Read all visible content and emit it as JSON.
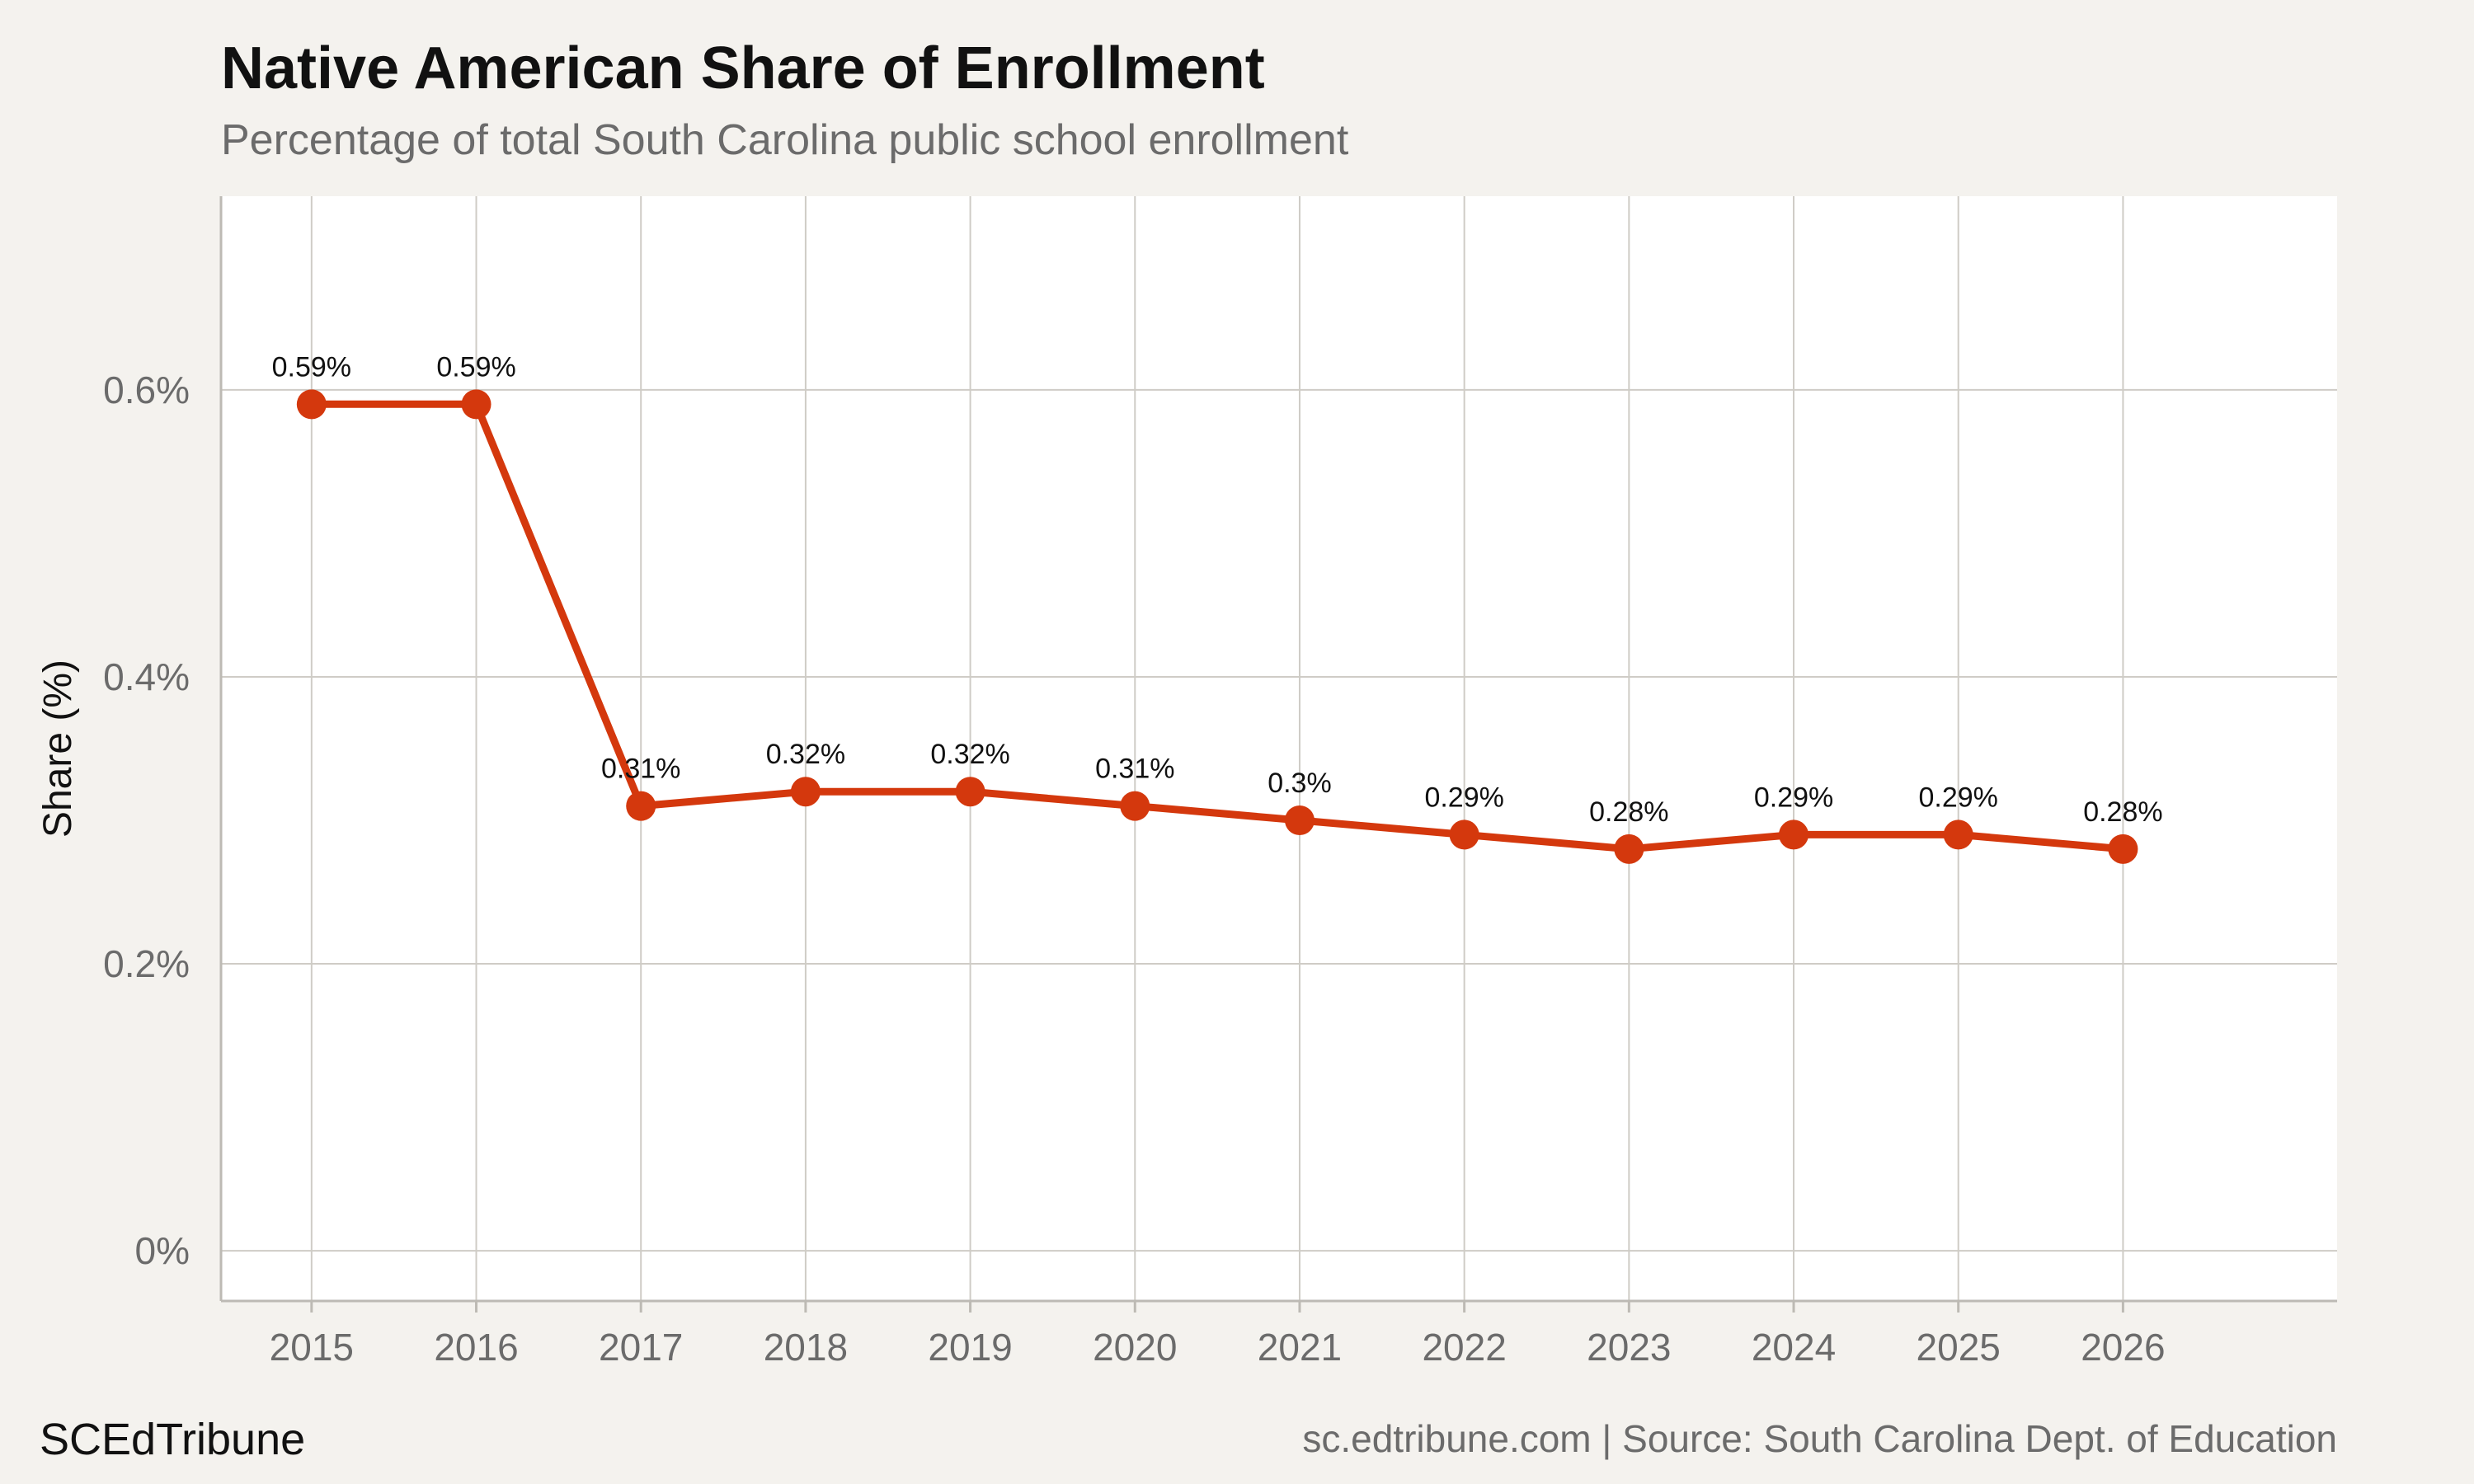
{
  "header": {
    "title": "Native American Share of Enrollment",
    "subtitle": "Percentage of total South Carolina public school enrollment"
  },
  "footer": {
    "brand": "SCEdTribune",
    "source": "sc.edtribune.com | Source: South Carolina Dept. of Education"
  },
  "colors": {
    "line": "#d4380d",
    "grid": "#cfccc6",
    "panel": "#ffffff",
    "background": "#f4f2ee"
  },
  "chart_data": {
    "type": "line",
    "title": "Native American Share of Enrollment",
    "subtitle": "Percentage of total South Carolina public school enrollment",
    "xlabel": "",
    "ylabel": "Share (%)",
    "x": [
      "2015",
      "2016",
      "2017",
      "2018",
      "2019",
      "2020",
      "2021",
      "2022",
      "2023",
      "2024",
      "2025",
      "2026"
    ],
    "values": [
      0.59,
      0.59,
      0.31,
      0.32,
      0.32,
      0.31,
      0.3,
      0.29,
      0.28,
      0.29,
      0.29,
      0.28
    ],
    "data_labels": [
      "0.59%",
      "0.59%",
      "0.31%",
      "0.32%",
      "0.32%",
      "0.31%",
      "0.3%",
      "0.29%",
      "0.28%",
      "0.29%",
      "0.29%",
      "0.28%"
    ],
    "yticks": [
      0,
      0.2,
      0.4,
      0.6
    ],
    "ytick_labels": [
      "0%",
      "0.2%",
      "0.4%",
      "0.6%"
    ],
    "ylim": [
      -0.035,
      0.735
    ],
    "xlim": [
      2014.45,
      2027.3
    ],
    "grid": true,
    "legend": "none"
  }
}
